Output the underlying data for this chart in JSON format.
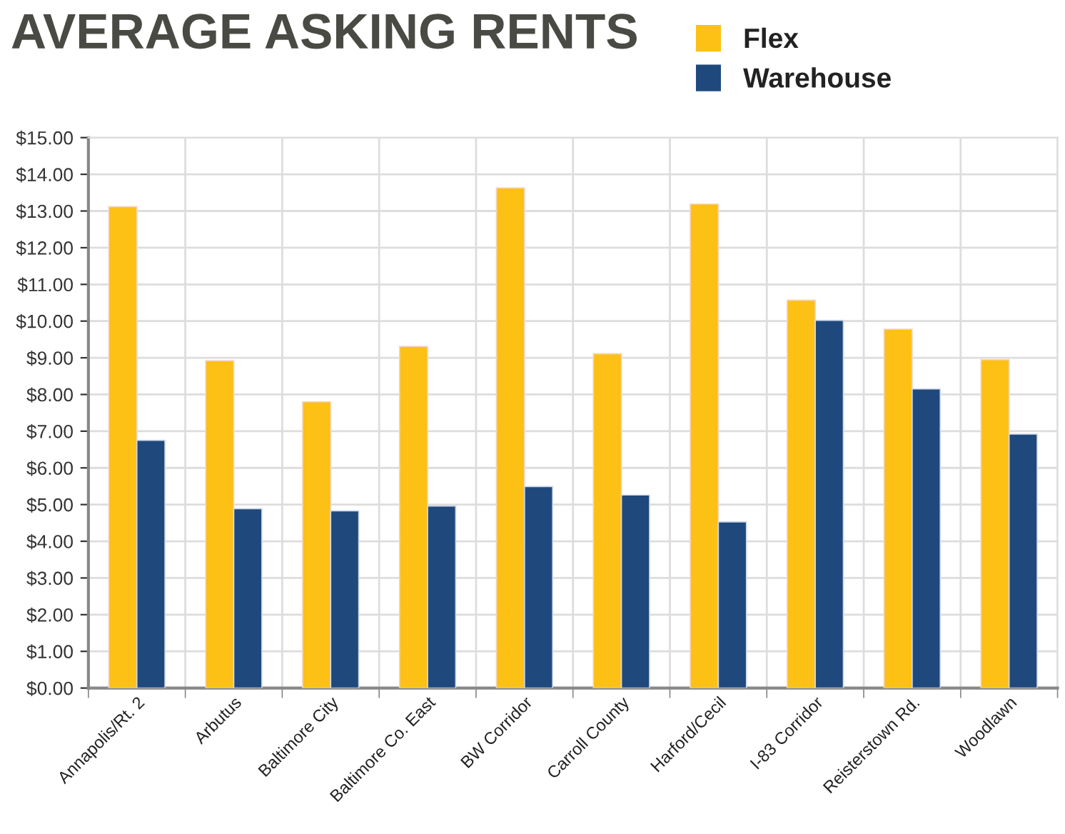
{
  "chart_data": {
    "type": "bar",
    "title": "AVERAGE ASKING RENTS",
    "categories": [
      "Annapolis/Rt. 2",
      "Arbutus",
      "Baltimore City",
      "Baltimore Co. East",
      "BW Corridor",
      "Carroll County",
      "Harford/Cecil",
      "I-83 Corridor",
      "Reisterstown Rd.",
      "Woodlawn"
    ],
    "series": [
      {
        "name": "Flex",
        "color": "#fdc014",
        "values": [
          13.12,
          8.92,
          7.8,
          9.31,
          13.63,
          9.11,
          13.19,
          10.57,
          9.78,
          8.95
        ]
      },
      {
        "name": "Warehouse",
        "color": "#1f497d",
        "values": [
          6.75,
          4.89,
          4.83,
          4.96,
          5.49,
          5.26,
          4.53,
          10.02,
          8.15,
          6.92
        ]
      }
    ],
    "ylim": [
      0,
      15
    ],
    "yticks": [
      {
        "value": 0,
        "label": "$0.00"
      },
      {
        "value": 1,
        "label": "$1.00"
      },
      {
        "value": 2,
        "label": "$2.00"
      },
      {
        "value": 3,
        "label": "$3.00"
      },
      {
        "value": 4,
        "label": "$4.00"
      },
      {
        "value": 5,
        "label": "$5.00"
      },
      {
        "value": 6,
        "label": "$6.00"
      },
      {
        "value": 7,
        "label": "$7.00"
      },
      {
        "value": 8,
        "label": "$8.00"
      },
      {
        "value": 9,
        "label": "$9.00"
      },
      {
        "value": 10,
        "label": "$10.00"
      },
      {
        "value": 11,
        "label": "$11.00"
      },
      {
        "value": 12,
        "label": "$12.00"
      },
      {
        "value": 13,
        "label": "$13.00"
      },
      {
        "value": 14,
        "label": "$14.00"
      },
      {
        "value": 15,
        "label": "$15.00"
      }
    ],
    "grid": true,
    "legend": "top right"
  }
}
